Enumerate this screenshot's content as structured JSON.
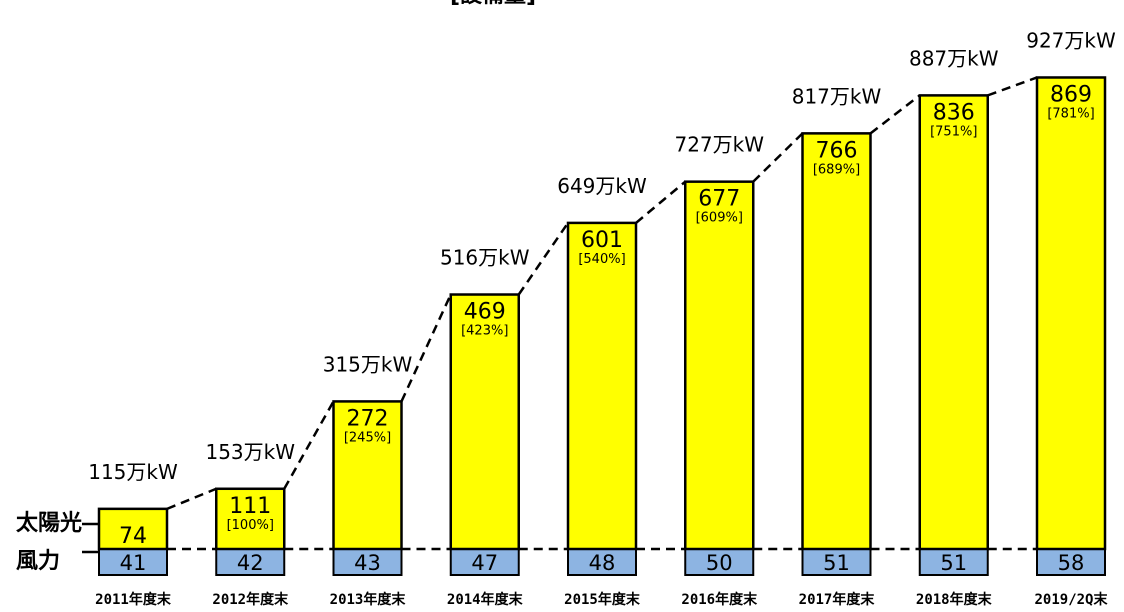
{
  "chart_data": {
    "type": "bar",
    "stacked": true,
    "title": "[設備量]",
    "categories": [
      "2011年度末",
      "2012年度末",
      "2013年度末",
      "2014年度末",
      "2015年度末",
      "2016年度末",
      "2017年度末",
      "2018年度末",
      "2019/2Q末"
    ],
    "series": [
      {
        "name": "風力",
        "values": [
          41,
          42,
          43,
          47,
          48,
          50,
          51,
          51,
          58
        ],
        "color": "#8DB4E2"
      },
      {
        "name": "太陽光",
        "values": [
          74,
          111,
          272,
          469,
          601,
          677,
          766,
          836,
          869
        ],
        "color": "#FFFF00"
      }
    ],
    "totals": [
      "115万kW",
      "153万kW",
      "315万kW",
      "516万kW",
      "649万kW",
      "727万kW",
      "817万kW",
      "887万kW",
      "927万kW"
    ],
    "solar_ratio": [
      "",
      "[100%]",
      "[245%]",
      "[423%]",
      "[540%]",
      "[609%]",
      "[689%]",
      "[751%]",
      "[781%]"
    ],
    "xlabel": "",
    "ylabel": "",
    "grid": false,
    "legend": "left, inline labels"
  }
}
